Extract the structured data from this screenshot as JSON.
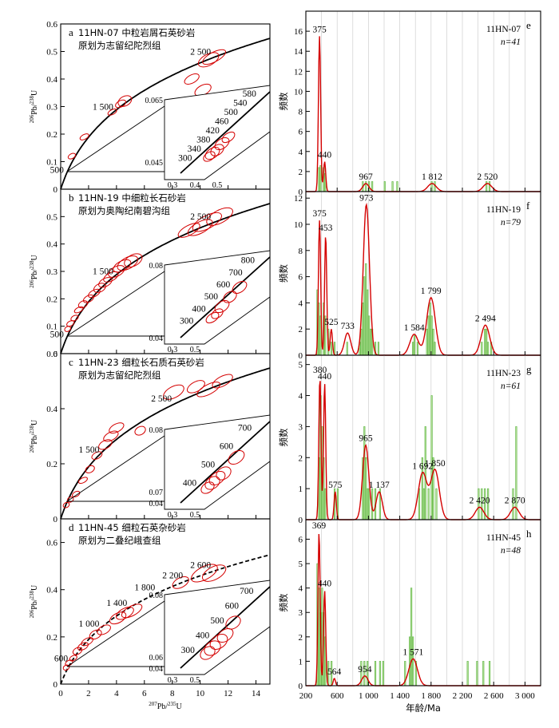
{
  "figure": {
    "concordia_axes": {
      "xlabel_sup1": "207",
      "xlabel_main": "Pb/",
      "xlabel_sup2": "235",
      "xlabel_end": "U",
      "ylabel_sup1": "206",
      "ylabel_main": "Pb/",
      "ylabel_sup2": "238",
      "ylabel_end": "U",
      "x_ticks": [
        "0",
        "2",
        "4",
        "6",
        "8",
        "10",
        "12",
        "14"
      ]
    },
    "histogram_axes": {
      "xlabel": "年龄/Ma",
      "ylabel": "频数",
      "x_ticks": [
        "200",
        "600",
        "1 000",
        "1 400",
        "1 800",
        "2 200",
        "2 600",
        "3 000"
      ]
    }
  },
  "chart_data": [
    {
      "type": "scatter",
      "subtype": "concordia",
      "panel": "a",
      "sample": "11HN-07",
      "caption_line1": "11HN-07  中粒岩屑石英砂岩",
      "caption_line2": "原划为志留纪陀烈组",
      "xlim": [
        0,
        15
      ],
      "ylim": [
        0,
        0.6
      ],
      "y_ticks": [
        "0",
        "0.1",
        "0.2",
        "0.3",
        "0.4",
        "0.5",
        "0.6"
      ],
      "age_labels": [
        "500",
        "1 500",
        "2 500"
      ],
      "inset_age_labels": [
        "300",
        "340",
        "380",
        "420",
        "460",
        "500",
        "540",
        "580"
      ],
      "inset_ticks": [
        "0.065",
        "0.045",
        "0.3",
        "0.4",
        "0.5"
      ]
    },
    {
      "type": "scatter",
      "subtype": "concordia",
      "panel": "b",
      "sample": "11HN-19",
      "caption_line1": "11HN-19   中细粒长石砂岩",
      "caption_line2": "原划为奥陶纪南碧沟组",
      "xlim": [
        0,
        15
      ],
      "ylim": [
        0,
        0.6
      ],
      "y_ticks": [
        "0",
        "0.1",
        "0.2",
        "0.3",
        "0.4",
        "0.5"
      ],
      "age_labels": [
        "500",
        "1 500",
        "2 500"
      ],
      "inset_age_labels": [
        "300",
        "400",
        "500",
        "600",
        "700",
        "800"
      ],
      "inset_ticks": [
        "0.08",
        "0.04",
        "0.3",
        "0.5"
      ]
    },
    {
      "type": "scatter",
      "subtype": "concordia",
      "panel": "c",
      "sample": "11HN-23",
      "caption_line1": "11HN-23  细粒长石质石英砂岩",
      "caption_line2": "原划为志留纪陀烈组",
      "xlim": [
        0,
        15
      ],
      "ylim": [
        0,
        0.6
      ],
      "y_ticks": [
        "0",
        "0.2",
        "0.4",
        "0.6"
      ],
      "age_labels": [
        "1 500",
        "2 500"
      ],
      "inset_age_labels": [
        "400",
        "500",
        "600",
        "700"
      ],
      "inset_ticks": [
        "0.08",
        "0.07",
        "0.04",
        "0.3",
        "0.5"
      ]
    },
    {
      "type": "scatter",
      "subtype": "concordia",
      "panel": "d",
      "sample": "11HN-45",
      "caption_line1": "11HN-45  细粒石英杂砂岩",
      "caption_line2": "原划为二叠纪峨查组",
      "xlim": [
        0,
        15
      ],
      "ylim": [
        0,
        0.7
      ],
      "y_ticks": [
        "0",
        "0.2",
        "0.4",
        "0.6"
      ],
      "x_ticks": [
        "0",
        "2",
        "4",
        "6",
        "8",
        "10",
        "12",
        "14"
      ],
      "age_labels": [
        "600",
        "1 000",
        "1 400",
        "1 800",
        "2 200",
        "2 600"
      ],
      "inset_age_labels": [
        "300",
        "400",
        "500",
        "600",
        "700"
      ],
      "inset_ticks": [
        "0.08",
        "0.06",
        "0.04",
        "0.3",
        "0.5"
      ]
    },
    {
      "type": "bar",
      "subtype": "histogram_with_kde",
      "panel": "e",
      "sample": "11HN-07",
      "n_label": "n=41",
      "xlim": [
        200,
        3200
      ],
      "ylim": [
        0,
        18
      ],
      "y_ticks": [
        "0",
        "2",
        "4",
        "6",
        "8",
        "10",
        "12",
        "14",
        "16"
      ],
      "bins": [
        [
          360,
          2.4
        ],
        [
          380,
          2.6
        ],
        [
          420,
          2.4
        ],
        [
          440,
          1.8
        ],
        [
          920,
          1
        ],
        [
          960,
          1
        ],
        [
          1000,
          1
        ],
        [
          1040,
          1
        ],
        [
          1200,
          1
        ],
        [
          1300,
          1
        ],
        [
          1360,
          1
        ],
        [
          1800,
          1
        ],
        [
          1840,
          1
        ],
        [
          2500,
          1
        ],
        [
          2540,
          1
        ]
      ],
      "peaks": [
        [
          375,
          15.5
        ],
        [
          440,
          3
        ],
        [
          967,
          0.8
        ],
        [
          1812,
          0.8
        ],
        [
          2520,
          0.8
        ]
      ],
      "peak_labels": [
        "375",
        "440",
        "967",
        "1 812",
        "2 520"
      ]
    },
    {
      "type": "bar",
      "subtype": "histogram_with_kde",
      "panel": "f",
      "sample": "11HN-19",
      "n_label": "n=79",
      "xlim": [
        200,
        3200
      ],
      "ylim": [
        0,
        12.5
      ],
      "y_ticks": [
        "0",
        "2",
        "4",
        "6",
        "8",
        "10",
        "12"
      ],
      "bins": [
        [
          340,
          5
        ],
        [
          360,
          4
        ],
        [
          380,
          3
        ],
        [
          420,
          4
        ],
        [
          440,
          3
        ],
        [
          480,
          2
        ],
        [
          520,
          1
        ],
        [
          560,
          1
        ],
        [
          720,
          1
        ],
        [
          880,
          1
        ],
        [
          900,
          2
        ],
        [
          920,
          4
        ],
        [
          940,
          6
        ],
        [
          960,
          7
        ],
        [
          980,
          5
        ],
        [
          1000,
          3
        ],
        [
          1020,
          2
        ],
        [
          1040,
          2
        ],
        [
          1080,
          1
        ],
        [
          1120,
          1
        ],
        [
          1560,
          1
        ],
        [
          1580,
          1.5
        ],
        [
          1620,
          1
        ],
        [
          1740,
          2
        ],
        [
          1760,
          3
        ],
        [
          1780,
          4
        ],
        [
          1800,
          3
        ],
        [
          1820,
          2
        ],
        [
          1840,
          1
        ],
        [
          2440,
          1
        ],
        [
          2480,
          2
        ],
        [
          2500,
          2
        ],
        [
          2520,
          1
        ],
        [
          2560,
          1
        ]
      ],
      "peaks": [
        [
          375,
          10.3
        ],
        [
          453,
          9.2
        ],
        [
          525,
          2
        ],
        [
          733,
          1.7
        ],
        [
          973,
          11.5
        ],
        [
          1584,
          1.6
        ],
        [
          1799,
          4.4
        ],
        [
          2494,
          2.3
        ]
      ],
      "peak_labels": [
        "375",
        "453",
        "525",
        "733",
        "973",
        "1 584",
        "1 799",
        "2 494"
      ]
    },
    {
      "type": "bar",
      "subtype": "histogram_with_kde",
      "panel": "g",
      "sample": "11HN-23",
      "n_label": "n=61",
      "xlim": [
        200,
        3200
      ],
      "ylim": [
        0,
        5.3
      ],
      "y_ticks": [
        "0",
        "1",
        "2",
        "3",
        "4",
        "5"
      ],
      "bins": [
        [
          360,
          2
        ],
        [
          380,
          4
        ],
        [
          400,
          3
        ],
        [
          420,
          2
        ],
        [
          440,
          1
        ],
        [
          560,
          1
        ],
        [
          600,
          1
        ],
        [
          920,
          2
        ],
        [
          940,
          3
        ],
        [
          960,
          2
        ],
        [
          980,
          1
        ],
        [
          1000,
          1
        ],
        [
          1040,
          1
        ],
        [
          1080,
          1
        ],
        [
          1140,
          1
        ],
        [
          1640,
          1
        ],
        [
          1680,
          2
        ],
        [
          1700,
          1
        ],
        [
          1720,
          3
        ],
        [
          1760,
          1
        ],
        [
          1800,
          4
        ],
        [
          1820,
          2
        ],
        [
          1860,
          1
        ],
        [
          2400,
          1
        ],
        [
          2440,
          1
        ],
        [
          2480,
          1
        ],
        [
          2520,
          1
        ],
        [
          2840,
          1
        ],
        [
          2880,
          3
        ]
      ],
      "peaks": [
        [
          380,
          4.6
        ],
        [
          440,
          4.4
        ],
        [
          575,
          0.9
        ],
        [
          965,
          2.4
        ],
        [
          1137,
          0.9
        ],
        [
          1692,
          1.5
        ],
        [
          1850,
          1.6
        ],
        [
          2420,
          0.4
        ],
        [
          2870,
          0.4
        ]
      ],
      "peak_labels": [
        "380",
        "440",
        "575",
        "965",
        "1 137",
        "1 692",
        "1 850",
        "2 420",
        "2 870"
      ]
    },
    {
      "type": "bar",
      "subtype": "histogram_with_kde",
      "panel": "h",
      "sample": "11HN-45",
      "n_label": "n=48",
      "xlim": [
        200,
        3200
      ],
      "ylim": [
        0,
        6.8
      ],
      "y_ticks": [
        "0",
        "1",
        "2",
        "3",
        "4",
        "5",
        "6"
      ],
      "bins": [
        [
          340,
          5
        ],
        [
          360,
          4
        ],
        [
          380,
          3
        ],
        [
          400,
          4
        ],
        [
          420,
          3
        ],
        [
          440,
          2
        ],
        [
          480,
          1
        ],
        [
          520,
          1
        ],
        [
          900,
          1
        ],
        [
          940,
          1
        ],
        [
          980,
          1
        ],
        [
          1080,
          1
        ],
        [
          1140,
          1
        ],
        [
          1180,
          1
        ],
        [
          1460,
          1
        ],
        [
          1520,
          2
        ],
        [
          1540,
          4
        ],
        [
          1560,
          2
        ],
        [
          1600,
          1
        ],
        [
          2260,
          1
        ],
        [
          2380,
          1
        ],
        [
          2460,
          1
        ],
        [
          2540,
          1
        ]
      ],
      "peaks": [
        [
          369,
          6.3
        ],
        [
          440,
          3.9
        ],
        [
          564,
          0.3
        ],
        [
          954,
          0.4
        ],
        [
          1571,
          1.1
        ]
      ],
      "peak_labels": [
        "369",
        "440",
        "564",
        "954",
        "1 571"
      ]
    }
  ]
}
